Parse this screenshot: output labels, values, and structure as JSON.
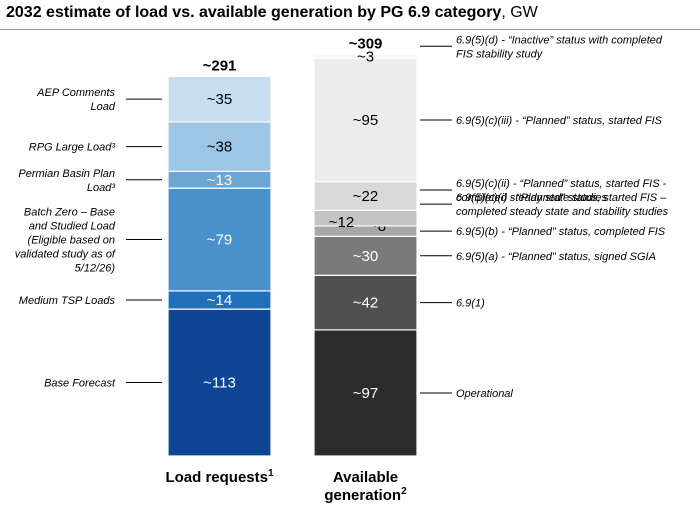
{
  "title": {
    "main": "2032 estimate of load vs. available generation by PG 6.9 category",
    "unit": ", GW"
  },
  "chart_data": {
    "type": "bar",
    "stacked": true,
    "ylim": [
      0,
      309
    ],
    "grid": false,
    "legend": "annotations beside bars",
    "bars": [
      {
        "category": "Load requests",
        "superscript": "1",
        "total_label": "~291",
        "segments": [
          {
            "value": 113,
            "label": "~113",
            "color": "#0e4595",
            "annotation": [
              "Base Forecast"
            ]
          },
          {
            "value": 14,
            "label": "~14",
            "color": "#1f6fba",
            "annotation": [
              "Medium TSP Loads"
            ]
          },
          {
            "value": 79,
            "label": "~79",
            "color": "#4a90cb",
            "annotation": [
              "Batch Zero – Base",
              "and Studied Load",
              "(Eligible based on",
              "validated study as of",
              "5/12/26)"
            ]
          },
          {
            "value": 13,
            "label": "~13",
            "color": "#6aa7d7",
            "annotation": [
              "Permian Basin Plan",
              "Load³"
            ]
          },
          {
            "value": 38,
            "label": "~38",
            "color": "#9cc5e6",
            "annotation": [
              "RPG Large Load³"
            ]
          },
          {
            "value": 35,
            "label": "~35",
            "color": "#c7def1",
            "annotation": [
              "AEP Comments",
              "Load"
            ]
          }
        ]
      },
      {
        "category": "Available generation",
        "category_lines": [
          "Available",
          "generation"
        ],
        "superscript": "2",
        "total_label": "~309",
        "segments": [
          {
            "value": 97,
            "label": "~97",
            "color": "#2b2b2b",
            "annotation": [
              "Operational"
            ]
          },
          {
            "value": 42,
            "label": "~42",
            "color": "#505050",
            "annotation": [
              "6.9(1)"
            ]
          },
          {
            "value": 30,
            "label": "~30",
            "color": "#7a7a7a",
            "annotation": [
              "6.9(5)(a) - “Planned” status, signed SGIA"
            ]
          },
          {
            "value": 8,
            "label": "~8",
            "color": "#a8a8a8",
            "annotation": [
              "6.9(5)(b) - “Planned” status, completed FIS"
            ]
          },
          {
            "value": 12,
            "label": "~12",
            "color": "#c4c4c4",
            "annotation": [
              "6.9(5)(c)(i) - “Planned” status, started FIS –",
              "completed steady state and stability studies"
            ]
          },
          {
            "value": 22,
            "label": "~22",
            "color": "#d9d9d9",
            "annotation": [
              "6.9(5)(c)(ii) - “Planned” status, started FIS -",
              "completed steady state studies"
            ]
          },
          {
            "value": 95,
            "label": "~95",
            "color": "#ececec",
            "annotation": [
              "6.9(5)(c)(iii) - “Planned” status, started FIS"
            ]
          },
          {
            "value": 3,
            "label": "~3",
            "color": "#f6f6f6",
            "annotation": [
              "6.9(5)(d) - “Inactive” status with completed",
              "FIS stability study"
            ]
          }
        ]
      }
    ]
  }
}
